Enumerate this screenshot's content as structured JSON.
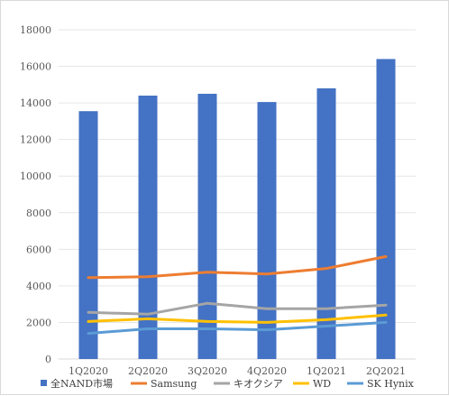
{
  "chart_data": {
    "type": "bar",
    "title": "",
    "xlabel": "",
    "ylabel": "",
    "categories": [
      "1Q2020",
      "2Q2020",
      "3Q2020",
      "4Q2020",
      "1Q2021",
      "2Q2021"
    ],
    "ylim": [
      0,
      18000
    ],
    "yticks": [
      0,
      2000,
      4000,
      6000,
      8000,
      10000,
      12000,
      14000,
      16000,
      18000
    ],
    "grid": true,
    "legend_position": "bottom",
    "series": [
      {
        "name": "全NAND市場",
        "kind": "bar",
        "color": "#4472C4",
        "values": [
          13550,
          14400,
          14500,
          14050,
          14800,
          16400
        ]
      },
      {
        "name": "Samsung",
        "kind": "line",
        "color": "#ED7D31",
        "values": [
          4450,
          4500,
          4750,
          4650,
          4950,
          5600
        ]
      },
      {
        "name": "キオクシア",
        "kind": "line",
        "color": "#A5A5A5",
        "values": [
          2550,
          2450,
          3050,
          2750,
          2750,
          2950
        ]
      },
      {
        "name": "WD",
        "kind": "line",
        "color": "#FFC000",
        "values": [
          2050,
          2200,
          2050,
          2000,
          2150,
          2400
        ]
      },
      {
        "name": "SK Hynix",
        "kind": "line",
        "color": "#5B9BD5",
        "values": [
          1400,
          1650,
          1650,
          1600,
          1800,
          2000
        ]
      }
    ]
  }
}
